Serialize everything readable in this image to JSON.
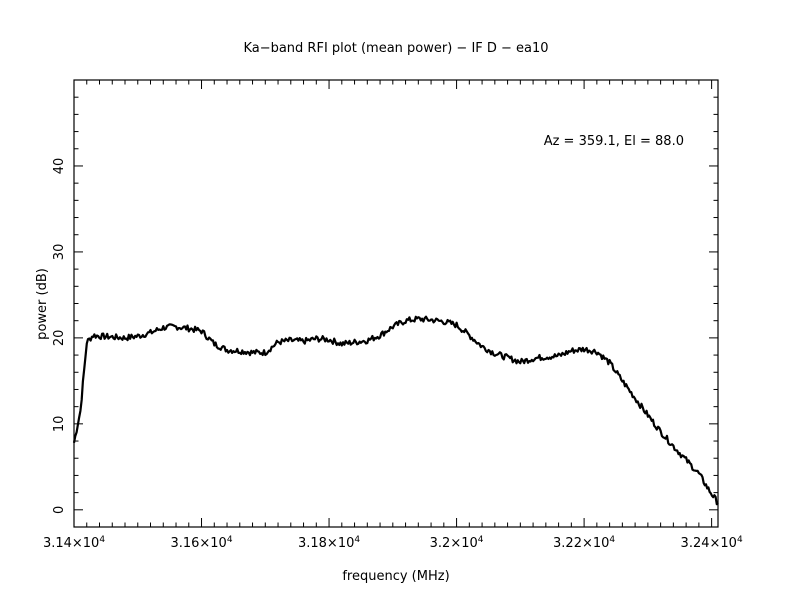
{
  "chart_data": {
    "type": "line",
    "title": "Ka−band RFI plot (mean power) − IF D − ea10",
    "xlabel": "frequency (MHz)",
    "ylabel": "power (dB)",
    "annotation": "Az = 359.1, El = 88.0",
    "xlim": [
      31400,
      32410
    ],
    "ylim": [
      -2,
      50
    ],
    "x_ticks": [
      {
        "value": 31400,
        "mantissa": "3.14",
        "exp": "4"
      },
      {
        "value": 31600,
        "mantissa": "3.16",
        "exp": "4"
      },
      {
        "value": 31800,
        "mantissa": "3.18",
        "exp": "4"
      },
      {
        "value": 32000,
        "mantissa": "3.2",
        "exp": "4"
      },
      {
        "value": 32200,
        "mantissa": "3.22",
        "exp": "4"
      },
      {
        "value": 32400,
        "mantissa": "3.24",
        "exp": "4"
      }
    ],
    "y_ticks": [
      0,
      10,
      20,
      30,
      40
    ],
    "grid": false,
    "line_color": "#000000",
    "series": [
      {
        "x": [
          31400,
          31410,
          31420,
          31430,
          31440,
          31460,
          31480,
          31500,
          31520,
          31540,
          31560,
          31580,
          31600,
          31620,
          31640,
          31660,
          31680,
          31700,
          31720,
          31740,
          31760,
          31780,
          31800,
          31820,
          31840,
          31860,
          31880,
          31900,
          31920,
          31940,
          31960,
          31980,
          32000,
          32020,
          32040,
          32060,
          32080,
          32100,
          32120,
          32140,
          32160,
          32180,
          32200,
          32220,
          32240,
          32260,
          32280,
          32300,
          32320,
          32340,
          32360,
          32380,
          32395,
          32410
        ],
        "y": [
          7.8,
          11.5,
          19.5,
          20.3,
          20.2,
          20.1,
          20.0,
          20.2,
          20.6,
          21.2,
          21.3,
          21.1,
          20.8,
          19.3,
          18.6,
          18.5,
          18.3,
          18.3,
          19.5,
          19.7,
          19.6,
          19.9,
          19.8,
          19.3,
          19.5,
          19.7,
          20.3,
          21.3,
          22.0,
          22.2,
          22.1,
          21.9,
          21.5,
          20.3,
          19.0,
          18.2,
          17.7,
          17.2,
          17.6,
          17.8,
          17.9,
          18.5,
          18.7,
          18.4,
          17.1,
          15.0,
          13.0,
          11.0,
          9.1,
          7.4,
          5.8,
          4.2,
          2.4,
          0.8
        ]
      }
    ]
  }
}
